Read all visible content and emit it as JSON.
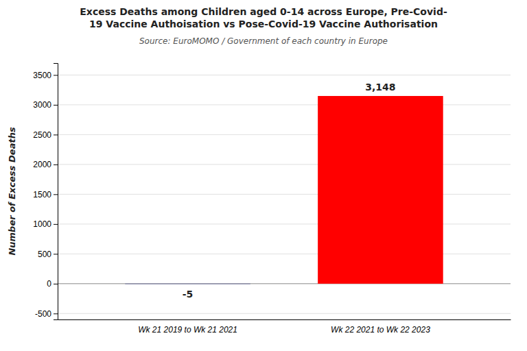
{
  "chart_data": {
    "type": "bar",
    "title": "Excess Deaths among Children aged 0-14 across Europe, Pre-Covid-\n19 Vaccine Authoisation vs Pose-Covid-19 Vaccine Authorisation",
    "subtitle": "Source: EuroMOMO / Government of each country in Europe",
    "categories": [
      "Wk 21 2019 to Wk 21 2021",
      "Wk 22 2021 to Wk 22 2023"
    ],
    "values": [
      -5,
      3148
    ],
    "colors": [
      "#1a237e",
      "#ff0000"
    ],
    "data_labels": true,
    "value_labels": [
      "-5",
      "3,148"
    ],
    "ylabel": "Number of Excess Deaths",
    "ylim": [
      -600,
      3700
    ],
    "yticks": [
      -500,
      0,
      500,
      1000,
      1500,
      2000,
      2500,
      3000,
      3500
    ],
    "grid": true
  }
}
